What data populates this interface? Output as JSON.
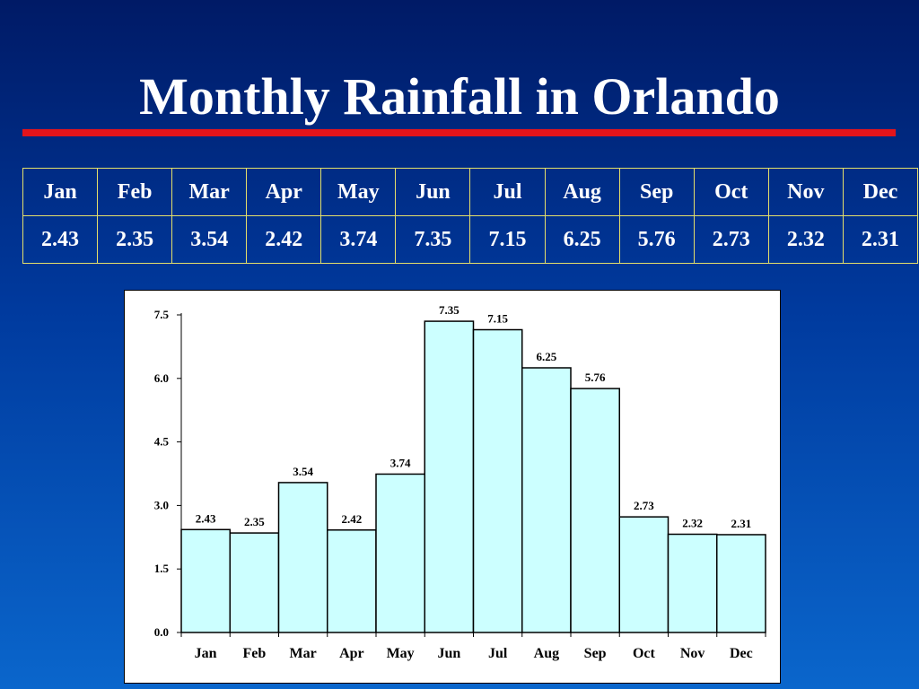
{
  "title": "Monthly Rainfall in Orlando",
  "colors": {
    "title_rule": "#e3141b",
    "table_border": "#e3e06a",
    "bar_fill": "#ccffff",
    "bar_stroke": "#000000"
  },
  "table": {
    "months": [
      "Jan",
      "Feb",
      "Mar",
      "Apr",
      "May",
      "Jun",
      "Jul",
      "Aug",
      "Sep",
      "Oct",
      "Nov",
      "Dec"
    ],
    "values": [
      "2.43",
      "2.35",
      "3.54",
      "2.42",
      "3.74",
      "7.35",
      "7.15",
      "6.25",
      "5.76",
      "2.73",
      "2.32",
      "2.31"
    ]
  },
  "chart_data": {
    "type": "bar",
    "categories": [
      "Jan",
      "Feb",
      "Mar",
      "Apr",
      "May",
      "Jun",
      "Jul",
      "Aug",
      "Sep",
      "Oct",
      "Nov",
      "Dec"
    ],
    "values": [
      2.43,
      2.35,
      3.54,
      2.42,
      3.74,
      7.35,
      7.15,
      6.25,
      5.76,
      2.73,
      2.32,
      2.31
    ],
    "value_labels": [
      "2.43",
      "2.35",
      "3.54",
      "2.42",
      "3.74",
      "7.35",
      "7.15",
      "6.25",
      "5.76",
      "2.73",
      "2.32",
      "2.31"
    ],
    "ylim": [
      0,
      7.5
    ],
    "yticks": [
      "0.0",
      "1.5",
      "3.0",
      "4.5",
      "6.0",
      "7.5"
    ],
    "grid": false,
    "legend": "none"
  }
}
